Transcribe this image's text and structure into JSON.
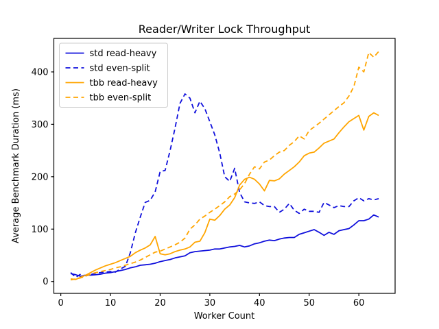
{
  "chart_data": {
    "type": "line",
    "title": "Reader/Writer Lock Throughput",
    "xlabel": "Worker Count",
    "ylabel": "Average Benchmark Duration (ms)",
    "xlim": [
      -1.4,
      67.3
    ],
    "ylim": [
      -22.6,
      464
    ],
    "xticks": [
      0,
      10,
      20,
      30,
      40,
      50,
      60
    ],
    "yticks": [
      0,
      100,
      200,
      300,
      400
    ],
    "grid": false,
    "legend_position": "upper-left",
    "x": [
      2,
      3,
      4,
      5,
      6,
      7,
      8,
      9,
      10,
      11,
      12,
      13,
      14,
      15,
      16,
      17,
      18,
      19,
      20,
      21,
      22,
      23,
      24,
      25,
      26,
      27,
      28,
      29,
      30,
      31,
      32,
      33,
      34,
      35,
      36,
      37,
      38,
      39,
      40,
      41,
      42,
      43,
      44,
      45,
      46,
      47,
      48,
      49,
      50,
      51,
      52,
      53,
      54,
      55,
      56,
      57,
      58,
      59,
      60,
      61,
      62,
      63,
      64
    ],
    "series": [
      {
        "name": "std read-heavy",
        "color": "#0f0fdc",
        "style": "solid",
        "values": [
          15,
          13,
          10,
          12,
          12,
          13,
          14,
          16,
          17,
          19,
          21,
          23,
          26,
          28,
          31,
          32,
          33,
          35,
          38,
          40,
          42,
          45,
          47,
          49,
          55,
          57,
          58,
          59,
          60,
          62,
          62,
          64,
          66,
          67,
          69,
          66,
          68,
          72,
          74,
          77,
          79,
          78,
          81,
          83,
          84,
          84,
          90,
          93,
          96,
          99,
          94,
          88,
          94,
          90,
          97,
          99,
          101,
          108,
          116,
          116,
          119,
          127,
          123
        ]
      },
      {
        "name": "std even-split",
        "color": "#0f0fdc",
        "style": "dashed",
        "values": [
          17,
          8,
          14,
          11,
          13,
          16,
          17,
          18,
          19,
          18,
          24,
          29,
          55,
          93,
          123,
          151,
          155,
          171,
          210,
          212,
          250,
          293,
          340,
          358,
          350,
          322,
          344,
          330,
          305,
          280,
          245,
          200,
          191,
          216,
          170,
          152,
          150,
          149,
          152,
          145,
          143,
          143,
          132,
          138,
          149,
          136,
          130,
          138,
          134,
          134,
          132,
          151,
          146,
          141,
          145,
          143,
          143,
          154,
          160,
          154,
          158,
          156,
          158
        ]
      },
      {
        "name": "tbb read-heavy",
        "color": "#ffa500",
        "style": "solid",
        "values": [
          5,
          4,
          8,
          12,
          17,
          22,
          26,
          30,
          33,
          36,
          40,
          44,
          48,
          55,
          60,
          64,
          70,
          86,
          53,
          51,
          53,
          57,
          60,
          62,
          66,
          75,
          77,
          93,
          119,
          117,
          126,
          138,
          146,
          160,
          184,
          195,
          199,
          195,
          186,
          173,
          193,
          192,
          196,
          205,
          212,
          219,
          228,
          240,
          245,
          247,
          255,
          264,
          268,
          272,
          284,
          295,
          305,
          311,
          317,
          289,
          315,
          322,
          317
        ]
      },
      {
        "name": "tbb even-split",
        "color": "#ffa500",
        "style": "dashed",
        "values": [
          3,
          5,
          7,
          10,
          14,
          17,
          19,
          21,
          23,
          26,
          28,
          31,
          34,
          37,
          41,
          46,
          51,
          56,
          58,
          62,
          66,
          70,
          75,
          83,
          100,
          108,
          119,
          125,
          132,
          138,
          145,
          152,
          162,
          167,
          175,
          187,
          205,
          219,
          215,
          228,
          232,
          240,
          247,
          250,
          260,
          267,
          278,
          272,
          288,
          295,
          302,
          310,
          318,
          326,
          334,
          341,
          354,
          372,
          409,
          400,
          437,
          428,
          439
        ]
      }
    ]
  }
}
